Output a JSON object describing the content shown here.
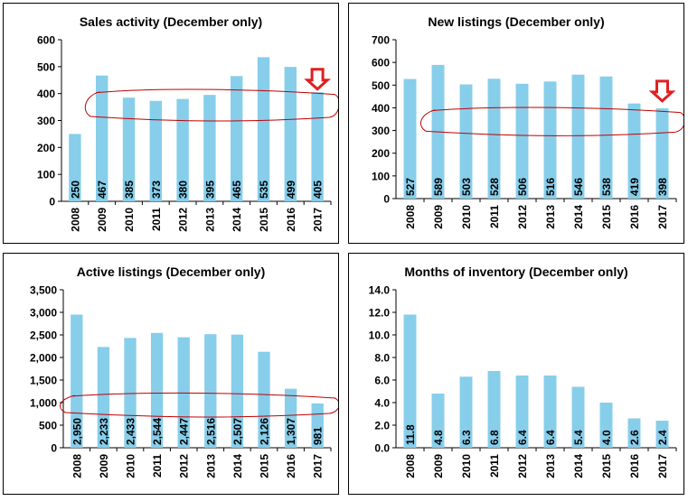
{
  "chart_data": [
    {
      "id": "sales",
      "type": "bar",
      "title": "Sales activity (December only)",
      "categories": [
        "2008",
        "2009",
        "2010",
        "2011",
        "2012",
        "2013",
        "2014",
        "2015",
        "2016",
        "2017"
      ],
      "values": [
        250,
        467,
        385,
        373,
        380,
        395,
        465,
        535,
        499,
        405
      ],
      "value_labels": [
        "250",
        "467",
        "385",
        "373",
        "380",
        "395",
        "465",
        "535",
        "499",
        "405"
      ],
      "ylim": [
        0,
        600
      ],
      "yticks": [
        0,
        100,
        200,
        300,
        400,
        500,
        600
      ],
      "ytick_labels": [
        "0",
        "100",
        "200",
        "300",
        "400",
        "500",
        "600"
      ],
      "bar_color": "#87CEEB",
      "annotation_oval": {
        "y_low": 305,
        "y_high": 410,
        "x_from": "2009",
        "x_to": "2017"
      },
      "arrow_at": "2017",
      "arrow_value": 450,
      "grid": false
    },
    {
      "id": "new",
      "type": "bar",
      "title": "New listings (December only)",
      "categories": [
        "2008",
        "2009",
        "2010",
        "2011",
        "2012",
        "2013",
        "2014",
        "2015",
        "2016",
        "2017"
      ],
      "values": [
        527,
        589,
        503,
        528,
        506,
        516,
        546,
        538,
        419,
        398
      ],
      "value_labels": [
        "527",
        "589",
        "503",
        "528",
        "506",
        "516",
        "546",
        "538",
        "419",
        "398"
      ],
      "ylim": [
        0,
        700
      ],
      "yticks": [
        0,
        100,
        200,
        300,
        400,
        500,
        600,
        700
      ],
      "ytick_labels": [
        "0",
        "100",
        "200",
        "300",
        "400",
        "500",
        "600",
        "700"
      ],
      "bar_color": "#87CEEB",
      "annotation_oval": {
        "y_low": 285,
        "y_high": 395,
        "x_from": "2009",
        "x_to": "2017"
      },
      "arrow_at": "2017",
      "arrow_value": 470,
      "grid": false
    },
    {
      "id": "active",
      "type": "bar",
      "title": "Active listings (December only)",
      "categories": [
        "2008",
        "2009",
        "2010",
        "2011",
        "2012",
        "2013",
        "2014",
        "2015",
        "2016",
        "2017"
      ],
      "values": [
        2950,
        2233,
        2433,
        2544,
        2447,
        2516,
        2507,
        2126,
        1307,
        981
      ],
      "value_labels": [
        "2,950",
        "2,233",
        "2,433",
        "2,544",
        "2,447",
        "2,516",
        "2,507",
        "2,126",
        "1,307",
        "981"
      ],
      "ylim": [
        0,
        3500
      ],
      "yticks": [
        0,
        500,
        1000,
        1500,
        2000,
        2500,
        3000,
        3500
      ],
      "ytick_labels": [
        "0",
        "500",
        "1,000",
        "1,500",
        "2,000",
        "2,500",
        "3,000",
        "3,500"
      ],
      "bar_color": "#87CEEB",
      "annotation_oval": {
        "y_low": 720,
        "y_high": 1180,
        "x_from": "2008",
        "x_to": "2017"
      },
      "arrow_at": null,
      "grid": false
    },
    {
      "id": "months",
      "type": "bar",
      "title": "Months of inventory (December only)",
      "categories": [
        "2008",
        "2009",
        "2010",
        "2011",
        "2012",
        "2013",
        "2014",
        "2015",
        "2016",
        "2017"
      ],
      "values": [
        11.8,
        4.8,
        6.3,
        6.8,
        6.4,
        6.4,
        5.4,
        4.0,
        2.6,
        2.4
      ],
      "value_labels": [
        "11.8",
        "4.8",
        "6.3",
        "6.8",
        "6.4",
        "6.4",
        "5.4",
        "4.0",
        "2.6",
        "2.4"
      ],
      "ylim": [
        0,
        14
      ],
      "yticks": [
        0,
        2,
        4,
        6,
        8,
        10,
        12,
        14
      ],
      "ytick_labels": [
        "0.0",
        "2.0",
        "4.0",
        "6.0",
        "8.0",
        "10.0",
        "12.0",
        "14.0"
      ],
      "bar_color": "#87CEEB",
      "annotation_oval": null,
      "arrow_at": null,
      "grid": false
    }
  ],
  "annotation_color": "#C00000",
  "arrow_color": "#E02020"
}
